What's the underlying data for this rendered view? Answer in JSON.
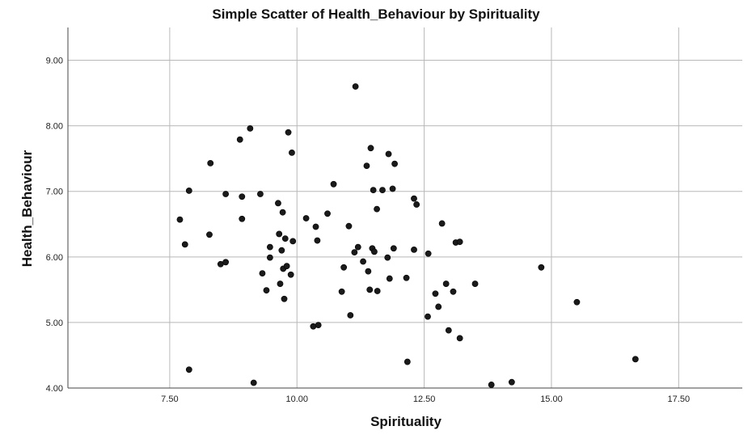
{
  "chart_data": {
    "type": "scatter",
    "title": "Simple Scatter of Health_Behaviour by Spirituality",
    "xlabel": "Spirituality",
    "ylabel": "Health_Behaviour",
    "xlim": [
      5.5,
      18.75
    ],
    "ylim": [
      4.0,
      9.5
    ],
    "xticks": [
      "7.50",
      "10.00",
      "12.50",
      "15.00",
      "17.50"
    ],
    "yticks": [
      "4.00",
      "5.00",
      "6.00",
      "7.00",
      "8.00",
      "9.00"
    ],
    "grid": true,
    "marker_color": "#1a1a1a",
    "points": [
      {
        "x": 7.7,
        "y": 6.57
      },
      {
        "x": 7.8,
        "y": 6.19
      },
      {
        "x": 7.88,
        "y": 7.01
      },
      {
        "x": 7.88,
        "y": 4.28
      },
      {
        "x": 8.3,
        "y": 7.43
      },
      {
        "x": 8.28,
        "y": 6.34
      },
      {
        "x": 8.5,
        "y": 5.89
      },
      {
        "x": 8.6,
        "y": 5.92
      },
      {
        "x": 8.6,
        "y": 6.96
      },
      {
        "x": 8.88,
        "y": 7.79
      },
      {
        "x": 8.92,
        "y": 6.92
      },
      {
        "x": 8.92,
        "y": 6.58
      },
      {
        "x": 9.08,
        "y": 7.96
      },
      {
        "x": 9.15,
        "y": 4.08
      },
      {
        "x": 9.28,
        "y": 6.96
      },
      {
        "x": 9.32,
        "y": 5.75
      },
      {
        "x": 9.4,
        "y": 5.49
      },
      {
        "x": 9.47,
        "y": 6.15
      },
      {
        "x": 9.47,
        "y": 5.99
      },
      {
        "x": 9.63,
        "y": 6.82
      },
      {
        "x": 9.65,
        "y": 6.35
      },
      {
        "x": 9.67,
        "y": 5.59
      },
      {
        "x": 9.7,
        "y": 6.1
      },
      {
        "x": 9.72,
        "y": 6.68
      },
      {
        "x": 9.73,
        "y": 5.82
      },
      {
        "x": 9.75,
        "y": 5.36
      },
      {
        "x": 9.77,
        "y": 6.28
      },
      {
        "x": 9.8,
        "y": 5.86
      },
      {
        "x": 9.83,
        "y": 7.9
      },
      {
        "x": 9.88,
        "y": 5.73
      },
      {
        "x": 9.9,
        "y": 7.59
      },
      {
        "x": 9.92,
        "y": 6.24
      },
      {
        "x": 10.18,
        "y": 6.59
      },
      {
        "x": 10.32,
        "y": 4.94
      },
      {
        "x": 10.37,
        "y": 6.46
      },
      {
        "x": 10.4,
        "y": 6.25
      },
      {
        "x": 10.42,
        "y": 4.96
      },
      {
        "x": 10.6,
        "y": 6.66
      },
      {
        "x": 10.72,
        "y": 7.11
      },
      {
        "x": 10.88,
        "y": 5.47
      },
      {
        "x": 10.92,
        "y": 5.84
      },
      {
        "x": 11.02,
        "y": 6.47
      },
      {
        "x": 11.05,
        "y": 5.11
      },
      {
        "x": 11.13,
        "y": 6.07
      },
      {
        "x": 11.15,
        "y": 8.6
      },
      {
        "x": 11.2,
        "y": 6.15
      },
      {
        "x": 11.3,
        "y": 5.93
      },
      {
        "x": 11.37,
        "y": 7.39
      },
      {
        "x": 11.4,
        "y": 5.78
      },
      {
        "x": 11.43,
        "y": 5.5
      },
      {
        "x": 11.45,
        "y": 7.66
      },
      {
        "x": 11.48,
        "y": 6.13
      },
      {
        "x": 11.5,
        "y": 7.02
      },
      {
        "x": 11.52,
        "y": 6.08
      },
      {
        "x": 11.57,
        "y": 6.73
      },
      {
        "x": 11.58,
        "y": 5.48
      },
      {
        "x": 11.68,
        "y": 7.02
      },
      {
        "x": 11.78,
        "y": 5.99
      },
      {
        "x": 11.8,
        "y": 7.57
      },
      {
        "x": 11.82,
        "y": 5.67
      },
      {
        "x": 11.88,
        "y": 7.04
      },
      {
        "x": 11.9,
        "y": 6.13
      },
      {
        "x": 11.92,
        "y": 7.42
      },
      {
        "x": 12.15,
        "y": 5.68
      },
      {
        "x": 12.17,
        "y": 4.4
      },
      {
        "x": 12.3,
        "y": 6.89
      },
      {
        "x": 12.3,
        "y": 6.11
      },
      {
        "x": 12.35,
        "y": 6.8
      },
      {
        "x": 12.57,
        "y": 5.09
      },
      {
        "x": 12.58,
        "y": 6.05
      },
      {
        "x": 12.72,
        "y": 5.44
      },
      {
        "x": 12.78,
        "y": 5.24
      },
      {
        "x": 12.85,
        "y": 6.51
      },
      {
        "x": 12.93,
        "y": 5.59
      },
      {
        "x": 12.98,
        "y": 4.88
      },
      {
        "x": 13.07,
        "y": 5.47
      },
      {
        "x": 13.12,
        "y": 6.22
      },
      {
        "x": 13.2,
        "y": 6.23
      },
      {
        "x": 13.2,
        "y": 4.76
      },
      {
        "x": 13.5,
        "y": 5.59
      },
      {
        "x": 13.82,
        "y": 4.05
      },
      {
        "x": 14.22,
        "y": 4.09
      },
      {
        "x": 14.8,
        "y": 5.84
      },
      {
        "x": 15.5,
        "y": 5.31
      },
      {
        "x": 16.65,
        "y": 4.44
      }
    ]
  }
}
